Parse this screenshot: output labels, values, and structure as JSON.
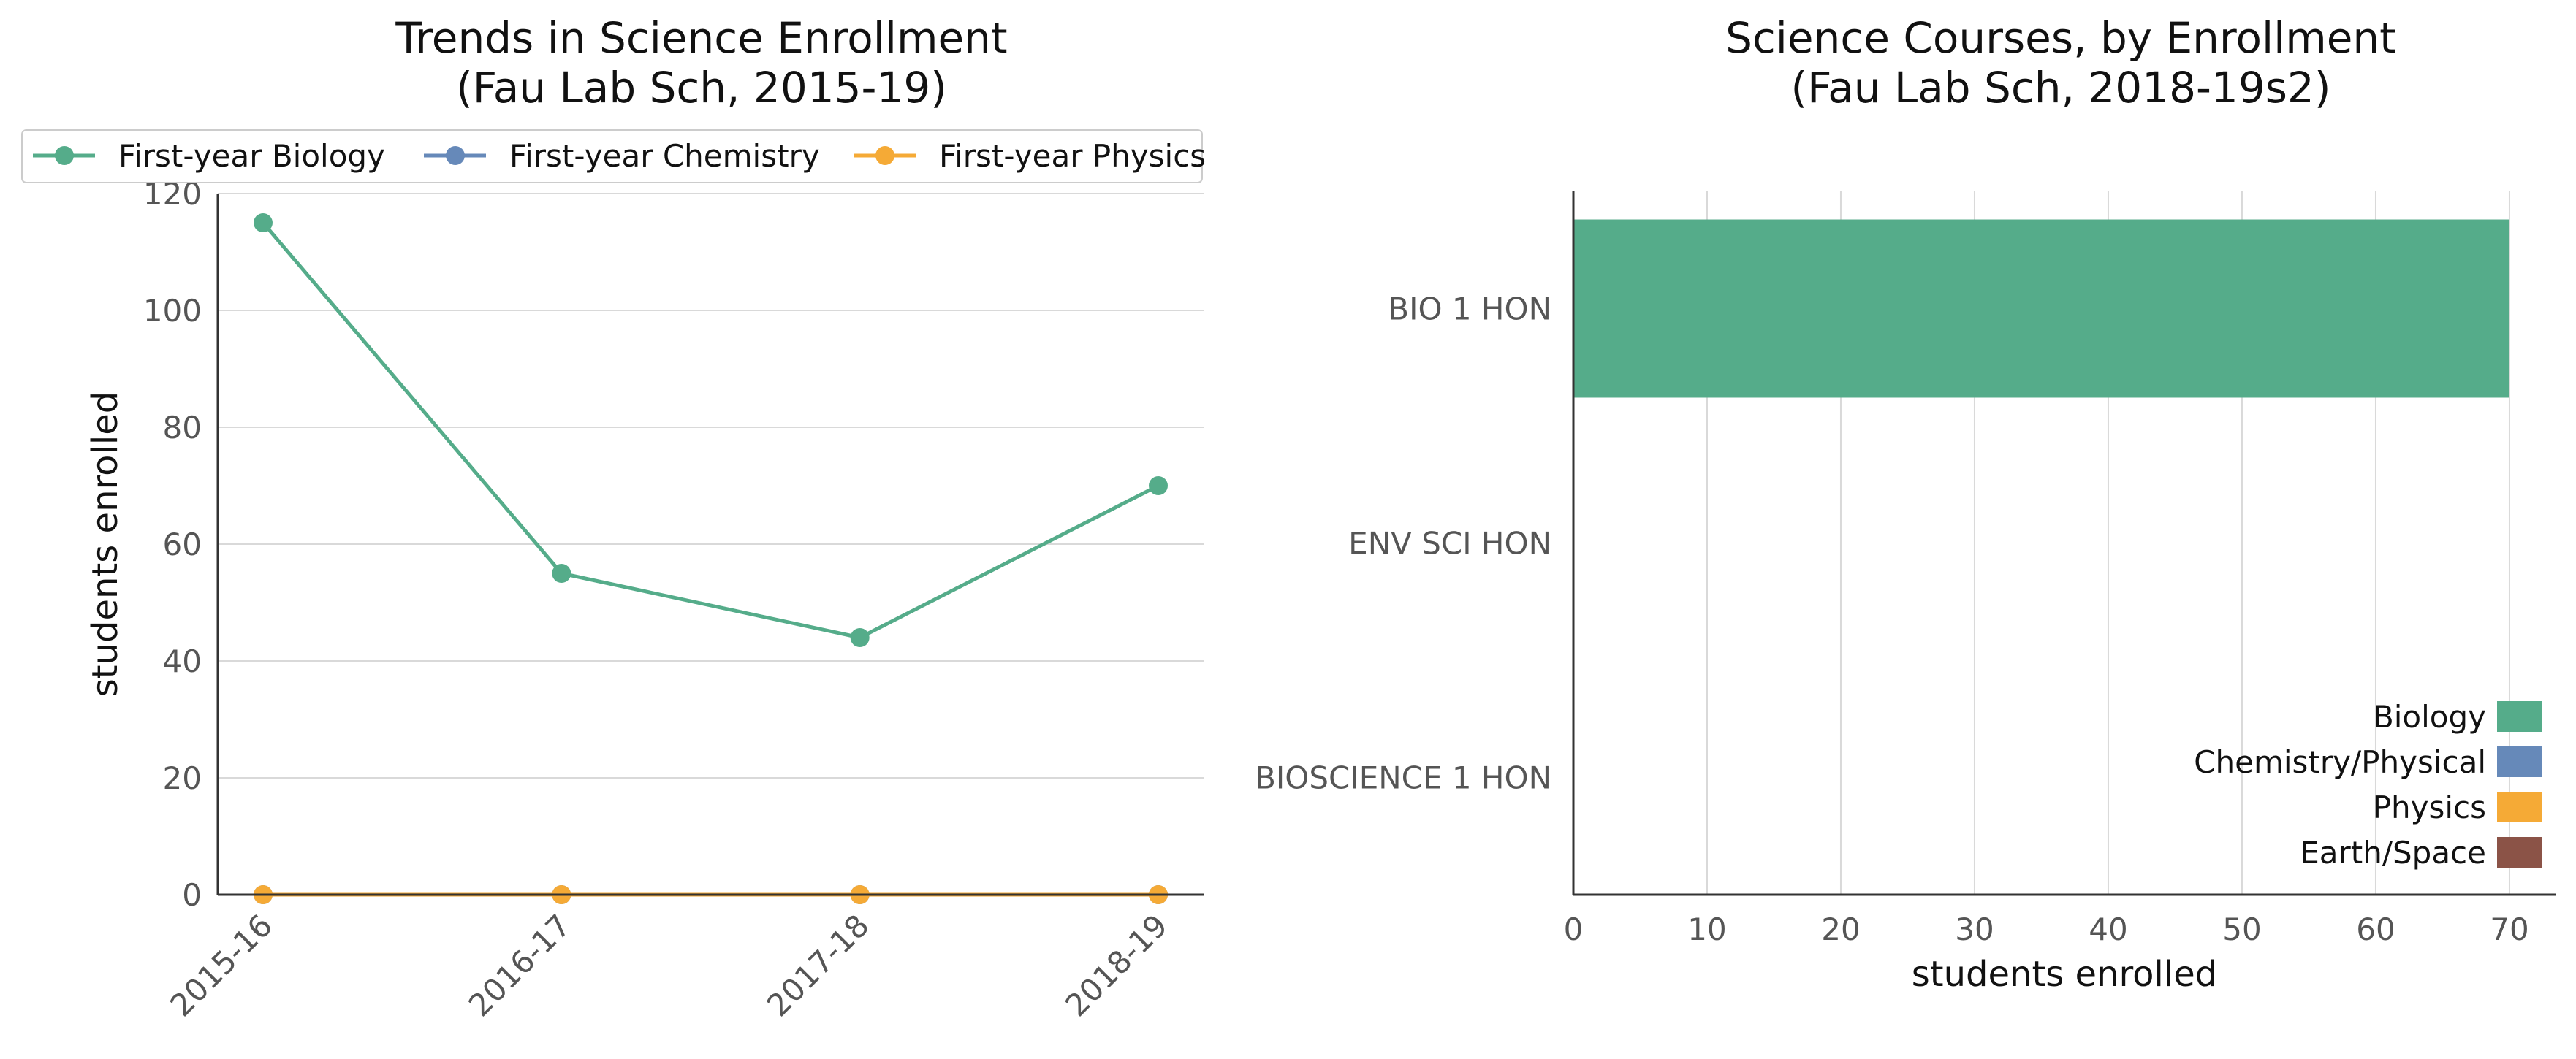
{
  "chart_data": [
    {
      "type": "line",
      "title": "Trends in Science Enrollment",
      "subtitle": "(Fau Lab Sch, 2015-19)",
      "xlabel": "",
      "ylabel": "students enrolled",
      "categories": [
        "2015-16",
        "2016-17",
        "2017-18",
        "2018-19"
      ],
      "ylim": [
        0,
        120
      ],
      "yticks": [
        0,
        20,
        40,
        60,
        80,
        100,
        120
      ],
      "grid": "horizontal",
      "legend_position": "top",
      "series": [
        {
          "name": "First-year Biology",
          "color": "#55ac8a",
          "values": [
            115,
            55,
            44,
            70
          ]
        },
        {
          "name": "First-year Chemistry",
          "color": "#6689b9",
          "values": [
            0,
            0,
            0,
            0
          ]
        },
        {
          "name": "First-year Physics",
          "color": "#f5aa36",
          "values": [
            0,
            0,
            0,
            0
          ]
        }
      ]
    },
    {
      "type": "bar",
      "orientation": "horizontal",
      "title": "Science Courses, by Enrollment",
      "subtitle": "(Fau Lab Sch, 2018-19s2)",
      "xlabel": "students enrolled",
      "ylabel": "",
      "categories": [
        "BIO 1 HON",
        "ENV SCI HON",
        "BIOSCIENCE 1 HON"
      ],
      "values": [
        70,
        0,
        0
      ],
      "bar_colors": [
        "#55ac8a",
        "#55ac8a",
        "#55ac8a"
      ],
      "xlim": [
        0,
        73.5
      ],
      "xticks": [
        0,
        10,
        20,
        30,
        40,
        50,
        60,
        70
      ],
      "grid": "vertical",
      "legend_position": "bottom-right",
      "legend": [
        {
          "name": "Biology",
          "color": "#55ac8a"
        },
        {
          "name": "Chemistry/Physical",
          "color": "#6689b9"
        },
        {
          "name": "Physics",
          "color": "#f5aa36"
        },
        {
          "name": "Earth/Space",
          "color": "#8b5347"
        }
      ]
    }
  ]
}
